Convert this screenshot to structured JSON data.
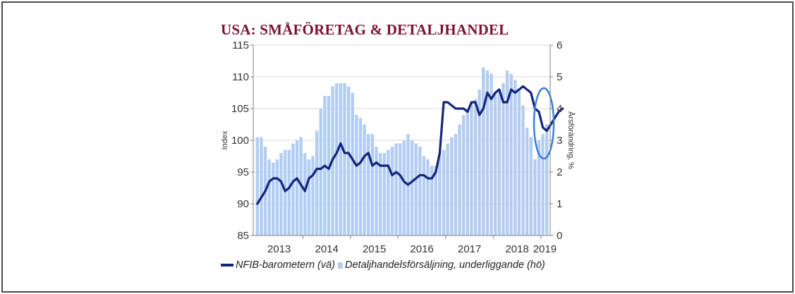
{
  "title": "USA: SMÅFÖRETAG & DETALJHANDEL",
  "legend": {
    "line_label": "NFIB-barometern (vä)",
    "bar_label": "Detaljhandelsförsäljning, underliggande (hö)"
  },
  "colors": {
    "title": "#7a1232",
    "line": "#14257a",
    "bars": "#b3cdf2",
    "highlight_ellipse": "#3b7fd9"
  },
  "chart_data": {
    "type": "bar",
    "title": "USA: SMÅFÖRETAG & DETALJHANDEL",
    "ylabel": "Index",
    "y2label": "Årsförändring, %",
    "ylim": [
      85,
      115
    ],
    "y2lim": [
      0,
      6
    ],
    "yticks": [
      "85",
      "90",
      "95",
      "100",
      "105",
      "110",
      "115"
    ],
    "y2ticks": [
      "0",
      "1",
      "2",
      "3",
      "4",
      "5",
      "6"
    ],
    "x_tick_labels": [
      "2013",
      "2014",
      "2015",
      "2016",
      "2017",
      "2018",
      "2019"
    ],
    "grid": true,
    "legend_position": "bottom",
    "periods_per_year": 12,
    "series": [
      {
        "name": "Detaljhandelsförsäljning, underliggande (hö)",
        "type": "bar",
        "axis": "right",
        "values": [
          3.1,
          3.1,
          2.8,
          2.4,
          2.3,
          2.4,
          2.6,
          2.7,
          2.7,
          2.9,
          3.0,
          3.1,
          2.6,
          2.4,
          2.5,
          3.3,
          4.0,
          4.4,
          4.4,
          4.7,
          4.8,
          4.8,
          4.8,
          4.7,
          4.5,
          3.8,
          3.7,
          3.5,
          3.2,
          3.2,
          2.8,
          2.6,
          2.6,
          2.7,
          2.8,
          2.9,
          2.9,
          3.0,
          3.2,
          3.0,
          2.9,
          2.8,
          2.5,
          2.4,
          2.2,
          2.2,
          2.6,
          2.7,
          2.9,
          3.1,
          3.2,
          3.5,
          3.8,
          4.0,
          4.2,
          4.3,
          4.6,
          5.3,
          5.2,
          5.1,
          4.5,
          4.6,
          4.8,
          5.2,
          5.1,
          4.9,
          4.6,
          4.1,
          3.4,
          3.1,
          2.4,
          3.0,
          3.2,
          3.5
        ]
      },
      {
        "name": "NFIB-barometern (vä)",
        "type": "line",
        "axis": "left",
        "values": [
          90.0,
          91.0,
          92.0,
          93.5,
          94.0,
          94.0,
          93.5,
          92.0,
          92.5,
          93.5,
          94.0,
          93.0,
          92.0,
          94.0,
          94.5,
          95.5,
          95.5,
          96.0,
          95.5,
          97.0,
          98.0,
          99.5,
          98.0,
          98.0,
          97.0,
          96.0,
          96.5,
          97.5,
          98.0,
          96.0,
          96.5,
          96.0,
          96.0,
          96.0,
          94.5,
          95.0,
          94.5,
          93.5,
          93.0,
          93.5,
          94.0,
          94.5,
          94.5,
          94.0,
          94.0,
          95.0,
          98.0,
          106.0,
          106.0,
          105.5,
          105.0,
          105.0,
          105.0,
          104.5,
          106.0,
          106.0,
          104.0,
          105.0,
          107.5,
          106.5,
          107.5,
          108.0,
          106.0,
          106.0,
          108.0,
          107.5,
          108.0,
          108.5,
          108.0,
          107.5,
          105.0,
          104.5,
          102.0,
          101.5,
          102.5,
          103.5,
          104.5,
          105.0
        ]
      }
    ]
  }
}
